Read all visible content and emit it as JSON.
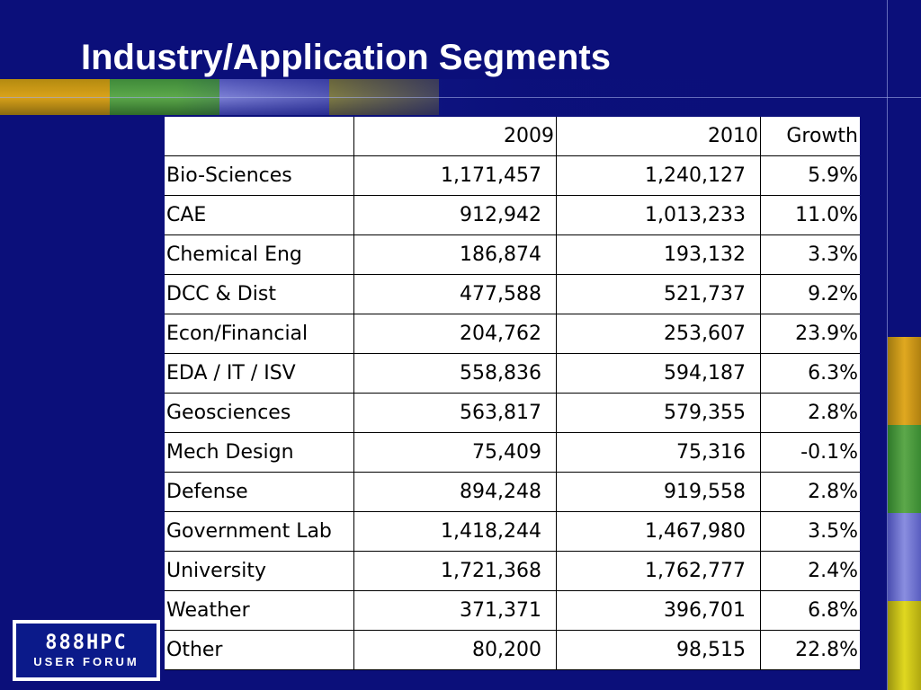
{
  "slide": {
    "title": "Industry/Application Segments"
  },
  "logo": {
    "line1": "888HPC",
    "line2": "USER FORUM"
  },
  "table": {
    "headers": [
      "",
      "2009",
      "2010",
      "Growth"
    ],
    "rows": [
      [
        "Bio-Sciences",
        "1,171,457",
        "1,240,127",
        "5.9%"
      ],
      [
        "CAE",
        "912,942",
        "1,013,233",
        "11.0%"
      ],
      [
        "Chemical Eng",
        "186,874",
        "193,132",
        "3.3%"
      ],
      [
        "DCC & Dist",
        "477,588",
        "521,737",
        "9.2%"
      ],
      [
        "Econ/Financial",
        "204,762",
        "253,607",
        "23.9%"
      ],
      [
        "EDA / IT / ISV",
        "558,836",
        "594,187",
        "6.3%"
      ],
      [
        "Geosciences",
        "563,817",
        "579,355",
        "2.8%"
      ],
      [
        "Mech Design",
        "75,409",
        "75,316",
        "-0.1%"
      ],
      [
        "Defense",
        "894,248",
        "919,558",
        "2.8%"
      ],
      [
        "Government Lab",
        "1,418,244",
        "1,467,980",
        "3.5%"
      ],
      [
        "University",
        "1,721,368",
        "1,762,777",
        "2.4%"
      ],
      [
        "Weather",
        "371,371",
        "396,701",
        "6.8%"
      ],
      [
        "Other",
        "80,200",
        "98,515",
        "22.8%"
      ]
    ]
  },
  "colors": {
    "background": "#0b0f7a",
    "title": "#ffffff",
    "table_bg": "#ffffff",
    "accent_gold": "#d9a21a",
    "accent_green": "#5ca84a",
    "accent_lavender": "#8a8ee0",
    "accent_yellow": "#d0c820"
  }
}
